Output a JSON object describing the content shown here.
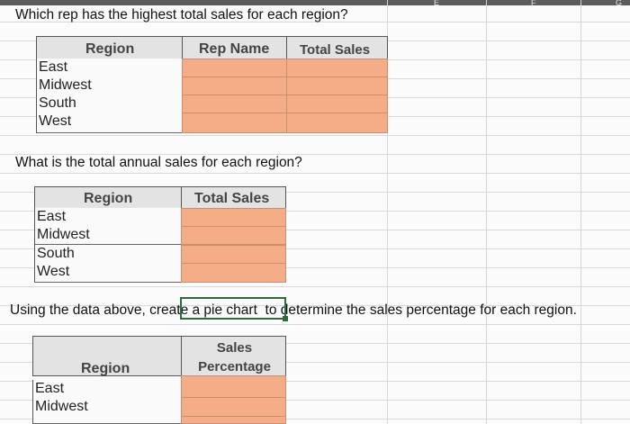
{
  "column_letters": [
    "E",
    "F",
    "G"
  ],
  "question1": "Which rep has the highest total sales for each region?",
  "table1": {
    "headers": [
      "Region",
      "Rep Name",
      "Total Sales"
    ],
    "rows": [
      "East",
      "Midwest",
      "South",
      "West"
    ]
  },
  "question2": "What is the total annual sales for each region?",
  "table2": {
    "headers": [
      "Region",
      "Total Sales"
    ],
    "rows": [
      "East",
      "Midwest",
      "South",
      "West"
    ]
  },
  "question3_before": "Using the data above, cr",
  "question3_selected": "eate a pie chart",
  "question3_after": "to determine the sales percentage for each region.",
  "table3": {
    "headers": [
      "Region",
      "Sales Percentage"
    ],
    "header_line1": "Sales",
    "header_line2": "Percentage",
    "rows": [
      "East",
      "Midwest"
    ]
  },
  "colors": {
    "orange_fill": "#f4ad86",
    "header_fill": "#e3e3e3",
    "selection_border": "#2e6b3e"
  }
}
